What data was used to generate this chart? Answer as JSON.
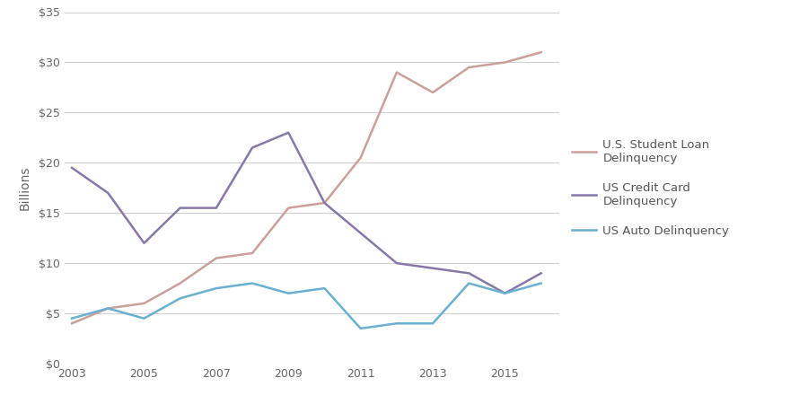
{
  "years": [
    2003,
    2004,
    2005,
    2006,
    2007,
    2008,
    2009,
    2010,
    2011,
    2012,
    2013,
    2014,
    2015,
    2016
  ],
  "student_loan": [
    4.0,
    5.5,
    6.0,
    8.0,
    10.5,
    11.0,
    15.5,
    16.0,
    20.5,
    29.0,
    27.0,
    29.5,
    30.0,
    31.0
  ],
  "credit_card": [
    19.5,
    17.0,
    12.0,
    15.5,
    15.5,
    21.5,
    23.0,
    16.0,
    13.0,
    10.0,
    9.5,
    9.0,
    7.0,
    9.0
  ],
  "auto": [
    4.5,
    5.5,
    4.5,
    6.5,
    7.5,
    8.0,
    7.0,
    7.5,
    3.5,
    4.0,
    4.0,
    8.0,
    7.0,
    8.0
  ],
  "student_color": "#c9a09a",
  "credit_card_color": "#8878a8",
  "auto_color": "#6ab0d0",
  "student_label": "U.S. Student Loan\nDelinquency",
  "credit_card_label": "US Credit Card\nDelinquency",
  "auto_label": "US Auto Delinquency",
  "ylabel": "Billions",
  "ylim": [
    0,
    35
  ],
  "yticks": [
    0,
    5,
    10,
    15,
    20,
    25,
    30,
    35
  ],
  "ytick_labels": [
    "$0",
    "$5",
    "$10",
    "$15",
    "$20",
    "$25",
    "$30",
    "$35"
  ],
  "xticks": [
    2003,
    2005,
    2007,
    2009,
    2011,
    2013,
    2015
  ],
  "line_width": 1.8,
  "background_color": "#ffffff",
  "grid_color": "#d0d0d0"
}
